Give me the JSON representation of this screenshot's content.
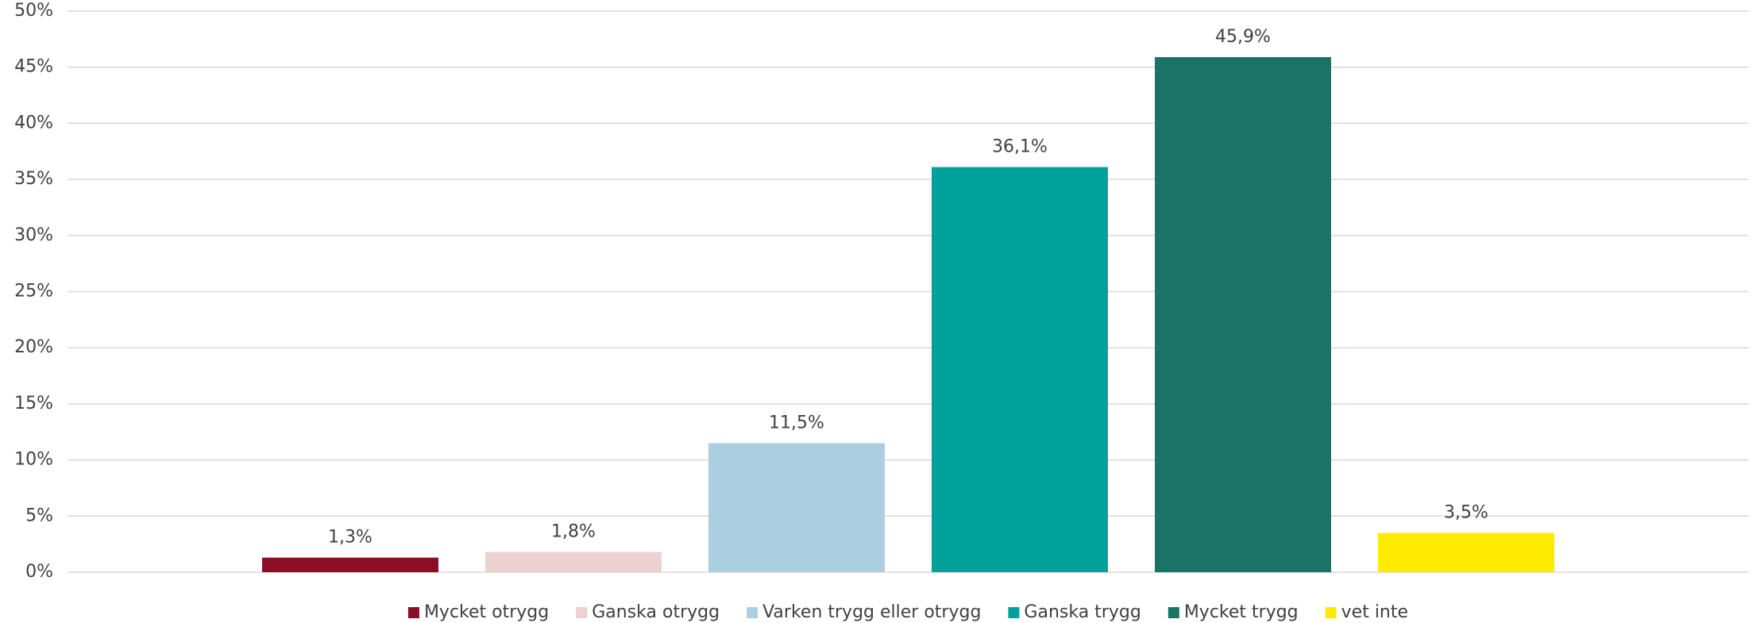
{
  "chart_data": {
    "type": "bar",
    "series": [
      {
        "name": "Mycket otrygg",
        "color": "#8b0e24",
        "values": [
          1.3
        ],
        "value_labels": [
          "1,3%"
        ]
      },
      {
        "name": "Ganska otrygg",
        "color": "#ebd1d0",
        "values": [
          1.8
        ],
        "value_labels": [
          "1,8%"
        ]
      },
      {
        "name": "Varken trygg eller otrygg",
        "color": "#abcfe0",
        "values": [
          11.5
        ],
        "value_labels": [
          "11,5%"
        ]
      },
      {
        "name": "Ganska trygg",
        "color": "#00a19a",
        "values": [
          36.1
        ],
        "value_labels": [
          "36,1%"
        ]
      },
      {
        "name": "Mycket trygg",
        "color": "#1a7366",
        "values": [
          45.9
        ],
        "value_labels": [
          "45,9%"
        ]
      },
      {
        "name": "vet inte",
        "color": "#ffeb00",
        "values": [
          3.5
        ],
        "value_labels": [
          "3,5%"
        ]
      }
    ],
    "ylim": [
      0,
      50
    ],
    "yticks": [
      {
        "value": 0,
        "label": "0%"
      },
      {
        "value": 5,
        "label": "5%"
      },
      {
        "value": 10,
        "label": "10%"
      },
      {
        "value": 15,
        "label": "15%"
      },
      {
        "value": 20,
        "label": "20%"
      },
      {
        "value": 25,
        "label": "25%"
      },
      {
        "value": 30,
        "label": "30%"
      },
      {
        "value": 35,
        "label": "35%"
      },
      {
        "value": 40,
        "label": "40%"
      },
      {
        "value": 45,
        "label": "45%"
      },
      {
        "value": 50,
        "label": "50%"
      }
    ],
    "grid": true,
    "legend": "bottom"
  }
}
